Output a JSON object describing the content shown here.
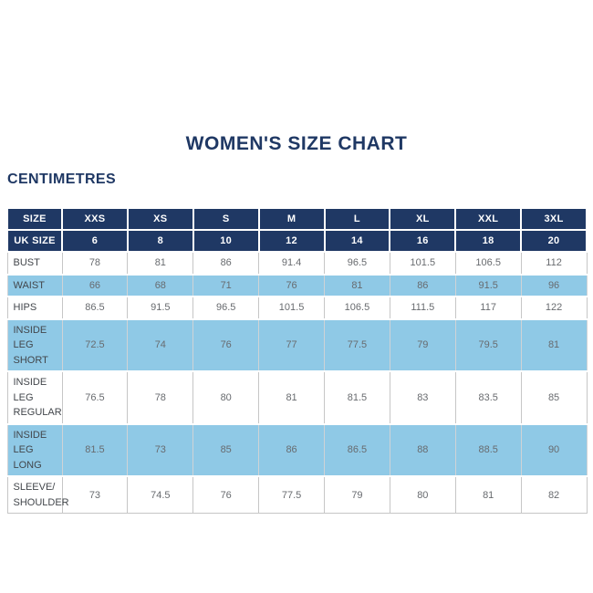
{
  "page": {
    "title": "WOMEN'S SIZE CHART",
    "subtitle": "CENTIMETRES"
  },
  "colors": {
    "navy_header": "#1f3864",
    "highlight_blue": "#8fc9e6",
    "cell_border": "#c6c6c6",
    "header_text": "#ffffff",
    "label_text": "#42464b",
    "value_text": "#686b6f",
    "background": "#ffffff"
  },
  "chart_data": {
    "type": "table",
    "title": "WOMEN'S SIZE CHART",
    "units": "CENTIMETRES",
    "header_rows": [
      {
        "label": "SIZE",
        "values": [
          "XXS",
          "XS",
          "S",
          "M",
          "L",
          "XL",
          "XXL",
          "3XL"
        ]
      },
      {
        "label": "UK SIZE",
        "values": [
          "6",
          "8",
          "10",
          "12",
          "14",
          "16",
          "18",
          "20"
        ]
      }
    ],
    "rows": [
      {
        "label": "BUST",
        "highlight": false,
        "values": [
          "78",
          "81",
          "86",
          "91.4",
          "96.5",
          "101.5",
          "106.5",
          "112"
        ]
      },
      {
        "label": "WAIST",
        "highlight": true,
        "values": [
          "66",
          "68",
          "71",
          "76",
          "81",
          "86",
          "91.5",
          "96"
        ]
      },
      {
        "label": "HIPS",
        "highlight": false,
        "values": [
          "86.5",
          "91.5",
          "96.5",
          "101.5",
          "106.5",
          "111.5",
          "117",
          "122"
        ]
      },
      {
        "label": "INSIDE LEG\nSHORT",
        "highlight": true,
        "values": [
          "72.5",
          "74",
          "76",
          "77",
          "77.5",
          "79",
          "79.5",
          "81"
        ]
      },
      {
        "label": "INSIDE LEG\nREGULAR",
        "highlight": false,
        "values": [
          "76.5",
          "78",
          "80",
          "81",
          "81.5",
          "83",
          "83.5",
          "85"
        ]
      },
      {
        "label": "INSIDE LEG\nLONG",
        "highlight": true,
        "values": [
          "81.5",
          "73",
          "85",
          "86",
          "86.5",
          "88",
          "88.5",
          "90"
        ]
      },
      {
        "label": "SLEEVE/\nSHOULDER",
        "highlight": false,
        "values": [
          "73",
          "74.5",
          "76",
          "77.5",
          "79",
          "80",
          "81",
          "82"
        ]
      }
    ]
  }
}
